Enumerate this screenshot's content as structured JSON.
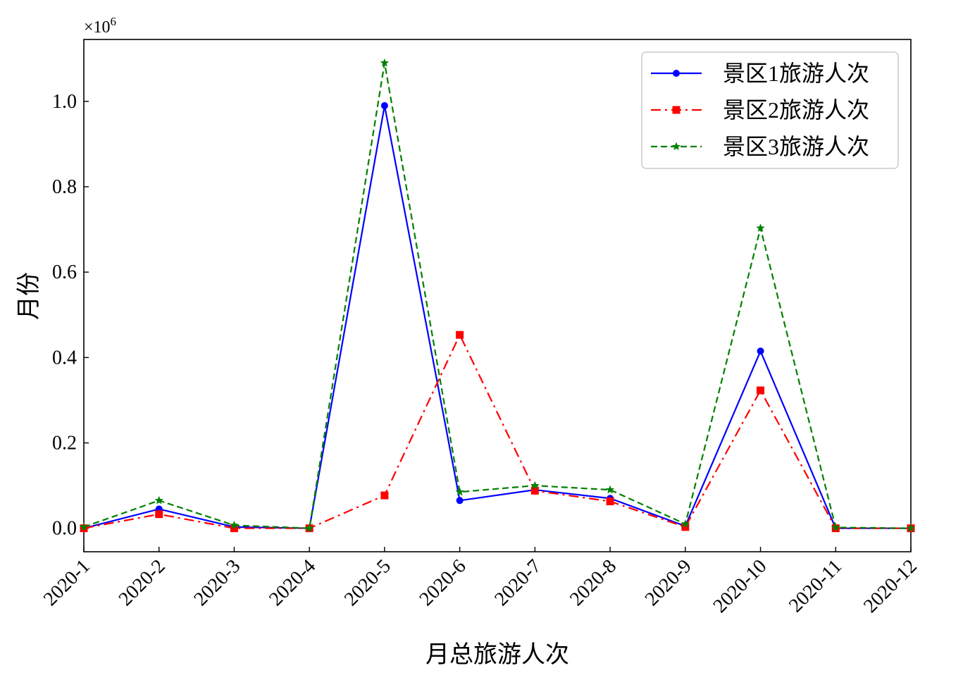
{
  "chart_data": {
    "type": "line",
    "title": "",
    "xlabel": "月总旅游人次",
    "ylabel": "月份",
    "y_multiplier_label": "×10",
    "y_multiplier_exp": "6",
    "categories": [
      "2020-1",
      "2020-2",
      "2020-3",
      "2020-4",
      "2020-5",
      "2020-6",
      "2020-7",
      "2020-8",
      "2020-9",
      "2020-10",
      "2020-11",
      "2020-12"
    ],
    "ylim": [
      -0.055,
      1.145
    ],
    "yticks": [
      0.0,
      0.2,
      0.4,
      0.6,
      0.8,
      1.0
    ],
    "ytick_labels": [
      "0.0",
      "0.2",
      "0.4",
      "0.6",
      "0.8",
      "1.0"
    ],
    "grid": false,
    "legend_position": "top-right",
    "series": [
      {
        "name": "景区1旅游人次",
        "color": "#0000ff",
        "dash": "",
        "marker": "circle",
        "values": [
          0.0,
          0.045,
          0.003,
          0.0,
          0.99,
          0.065,
          0.09,
          0.07,
          0.005,
          0.415,
          0.0,
          0.0
        ]
      },
      {
        "name": "景区2旅游人次",
        "color": "#ff0000",
        "dash": "14,6,3,6",
        "marker": "square",
        "values": [
          0.0,
          0.033,
          0.0,
          0.0,
          0.077,
          0.453,
          0.088,
          0.063,
          0.003,
          0.323,
          0.0,
          0.0
        ]
      },
      {
        "name": "景区3旅游人次",
        "color": "#008000",
        "dash": "9,5",
        "marker": "star",
        "values": [
          0.003,
          0.065,
          0.007,
          0.0,
          1.09,
          0.085,
          0.1,
          0.09,
          0.01,
          0.703,
          0.002,
          0.0
        ]
      }
    ]
  }
}
